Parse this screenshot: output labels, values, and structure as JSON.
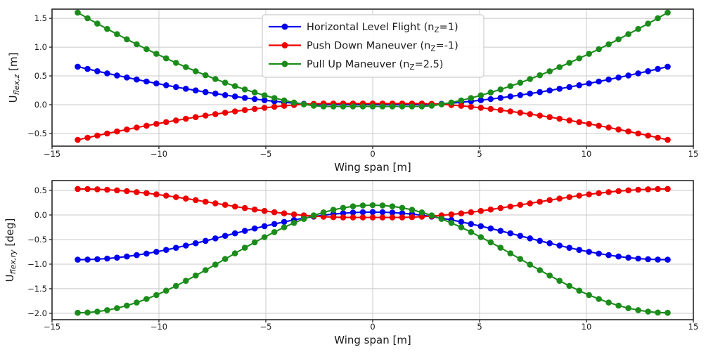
{
  "figure": {
    "background": "#ffffff",
    "grid_color": "#c8c8c8",
    "spine_color": "#262626",
    "text_color": "#1a1a1a",
    "legend_face_color": "#ffffff",
    "legend_edge_color": "#cccccc",
    "colors": {
      "horizontal-level-flight": "#0000ee",
      "push-down-maneuver": "#ee0000",
      "pull-up-maneuver": "#1b8c1b"
    },
    "legend": {
      "entries": [
        {
          "series": "horizontal-level-flight",
          "pre": "Horizontal Level Flight (n",
          "sub": "Z",
          "post": "=1)"
        },
        {
          "series": "push-down-maneuver",
          "pre": "Push Down Maneuver (n",
          "sub": "Z",
          "post": "=-1)"
        },
        {
          "series": "pull-up-maneuver",
          "pre": "Pull Up Maneuver (n",
          "sub": "Z",
          "post": "=2.5)"
        }
      ]
    }
  },
  "chart_data": [
    {
      "type": "line",
      "title": "",
      "xlabel": "Wing span [m]",
      "ylabel": {
        "pre": "U",
        "sub": "flex,z",
        "post": " [m]"
      },
      "xlim": [
        -15,
        15
      ],
      "ylim": [
        -0.72,
        1.66
      ],
      "grid": true,
      "legend_position": "upper center",
      "xticks": [
        {
          "v": -15,
          "label": "−15"
        },
        {
          "v": -10,
          "label": "−10"
        },
        {
          "v": -5,
          "label": "−5"
        },
        {
          "v": 0,
          "label": "0"
        },
        {
          "v": 5,
          "label": "5"
        },
        {
          "v": 10,
          "label": "10"
        },
        {
          "v": 15,
          "label": "15"
        }
      ],
      "yticks": [
        {
          "v": 1.5,
          "label": "1.5"
        },
        {
          "v": 1.0,
          "label": "1.0"
        },
        {
          "v": 0.5,
          "label": "0.5"
        },
        {
          "v": 0.0,
          "label": "0.0"
        },
        {
          "v": -0.5,
          "label": "−0.5"
        }
      ],
      "x": [
        -13.8,
        -13.34,
        -12.88,
        -12.42,
        -11.96,
        -11.5,
        -11.04,
        -10.58,
        -10.12,
        -9.66,
        -9.2,
        -8.74,
        -8.28,
        -7.82,
        -7.36,
        -6.9,
        -6.44,
        -5.98,
        -5.52,
        -5.06,
        -4.6,
        -4.14,
        -3.68,
        -3.22,
        -2.76,
        -2.3,
        -1.84,
        -1.38,
        -0.92,
        -0.46,
        0,
        0.46,
        0.92,
        1.38,
        1.84,
        2.3,
        2.76,
        3.22,
        3.68,
        4.14,
        4.6,
        5.06,
        5.52,
        5.98,
        6.44,
        6.9,
        7.36,
        7.82,
        8.28,
        8.74,
        9.2,
        9.66,
        10.12,
        10.58,
        11.04,
        11.5,
        11.96,
        12.42,
        12.88,
        13.34,
        13.8
      ],
      "series": [
        {
          "id": "horizontal-level-flight",
          "name": "Horizontal Level Flight (nZ=1)",
          "values": [
            0.66,
            0.621,
            0.582,
            0.545,
            0.508,
            0.472,
            0.437,
            0.403,
            0.37,
            0.338,
            0.307,
            0.277,
            0.248,
            0.219,
            0.193,
            0.167,
            0.143,
            0.119,
            0.098,
            0.078,
            0.059,
            0.042,
            0.027,
            0.015,
            0.005,
            0,
            0,
            0,
            0,
            0,
            0,
            0,
            0,
            0,
            0,
            0,
            0.005,
            0.015,
            0.027,
            0.042,
            0.059,
            0.078,
            0.098,
            0.119,
            0.143,
            0.167,
            0.193,
            0.219,
            0.248,
            0.277,
            0.307,
            0.338,
            0.37,
            0.403,
            0.437,
            0.472,
            0.508,
            0.545,
            0.582,
            0.621,
            0.66
          ]
        },
        {
          "id": "push-down-maneuver",
          "name": "Push Down Maneuver (nZ=-1)",
          "values": [
            -0.61,
            -0.573,
            -0.536,
            -0.5,
            -0.465,
            -0.431,
            -0.397,
            -0.365,
            -0.333,
            -0.303,
            -0.273,
            -0.244,
            -0.216,
            -0.189,
            -0.164,
            -0.139,
            -0.116,
            -0.094,
            -0.073,
            -0.054,
            -0.036,
            -0.02,
            -0.006,
            0.006,
            0.015,
            0.02,
            0.02,
            0.02,
            0.02,
            0.02,
            0.02,
            0.02,
            0.02,
            0.02,
            0.02,
            0.02,
            0.015,
            0.006,
            -0.006,
            -0.02,
            -0.036,
            -0.054,
            -0.073,
            -0.094,
            -0.116,
            -0.139,
            -0.164,
            -0.189,
            -0.216,
            -0.244,
            -0.273,
            -0.303,
            -0.333,
            -0.365,
            -0.397,
            -0.431,
            -0.465,
            -0.5,
            -0.536,
            -0.573,
            -0.61
          ]
        },
        {
          "id": "pull-up-maneuver",
          "name": "Pull Up Maneuver (nZ=2.5)",
          "values": [
            1.6,
            1.503,
            1.408,
            1.316,
            1.225,
            1.136,
            1.05,
            0.966,
            0.884,
            0.805,
            0.728,
            0.653,
            0.581,
            0.512,
            0.446,
            0.382,
            0.322,
            0.265,
            0.212,
            0.162,
            0.116,
            0.074,
            0.038,
            0.007,
            -0.017,
            -0.03,
            -0.03,
            -0.03,
            -0.03,
            -0.03,
            -0.03,
            -0.03,
            -0.03,
            -0.03,
            -0.03,
            -0.03,
            -0.017,
            0.007,
            0.038,
            0.074,
            0.116,
            0.162,
            0.212,
            0.265,
            0.322,
            0.382,
            0.446,
            0.512,
            0.581,
            0.653,
            0.728,
            0.805,
            0.884,
            0.966,
            1.05,
            1.136,
            1.225,
            1.316,
            1.408,
            1.503,
            1.6
          ]
        }
      ]
    },
    {
      "type": "line",
      "title": "",
      "xlabel": "Wing span [m]",
      "ylabel": {
        "pre": "U",
        "sub": "flex,ry",
        "post": " [deg]"
      },
      "xlim": [
        -15,
        15
      ],
      "ylim": [
        -2.13,
        0.7
      ],
      "grid": true,
      "legend_position": "none",
      "xticks": [
        {
          "v": -15,
          "label": "−15"
        },
        {
          "v": -10,
          "label": "−10"
        },
        {
          "v": -5,
          "label": "−5"
        },
        {
          "v": 0,
          "label": "0"
        },
        {
          "v": 5,
          "label": "5"
        },
        {
          "v": 10,
          "label": "10"
        },
        {
          "v": 15,
          "label": "15"
        }
      ],
      "yticks": [
        {
          "v": 0.5,
          "label": "0.5"
        },
        {
          "v": 0.0,
          "label": "0.0"
        },
        {
          "v": -0.5,
          "label": "−0.5"
        },
        {
          "v": -1.0,
          "label": "−1.0"
        },
        {
          "v": -1.5,
          "label": "−1.5"
        },
        {
          "v": -2.0,
          "label": "−2.0"
        }
      ],
      "x": [
        -13.8,
        -13.34,
        -12.88,
        -12.42,
        -11.96,
        -11.5,
        -11.04,
        -10.58,
        -10.12,
        -9.66,
        -9.2,
        -8.74,
        -8.28,
        -7.82,
        -7.36,
        -6.9,
        -6.44,
        -5.98,
        -5.52,
        -5.06,
        -4.6,
        -4.14,
        -3.68,
        -3.22,
        -2.76,
        -2.3,
        -1.84,
        -1.38,
        -0.92,
        -0.46,
        0,
        0.46,
        0.92,
        1.38,
        1.84,
        2.3,
        2.76,
        3.22,
        3.68,
        4.14,
        4.6,
        5.06,
        5.52,
        5.98,
        6.44,
        6.9,
        7.36,
        7.82,
        8.28,
        8.74,
        9.2,
        9.66,
        10.12,
        10.58,
        11.04,
        11.5,
        11.96,
        12.42,
        12.88,
        13.34,
        13.8
      ],
      "series": [
        {
          "id": "horizontal-level-flight",
          "name": "Horizontal Level Flight (nZ=1)",
          "values": [
            -0.91,
            -0.907,
            -0.899,
            -0.886,
            -0.868,
            -0.845,
            -0.817,
            -0.785,
            -0.75,
            -0.71,
            -0.668,
            -0.622,
            -0.575,
            -0.526,
            -0.476,
            -0.425,
            -0.374,
            -0.324,
            -0.275,
            -0.228,
            -0.183,
            -0.14,
            -0.1,
            -0.065,
            -0.033,
            -0.005,
            0.018,
            0.036,
            0.049,
            0.057,
            0.06,
            0.057,
            0.049,
            0.036,
            0.018,
            -0.005,
            -0.033,
            -0.065,
            -0.1,
            -0.14,
            -0.183,
            -0.228,
            -0.275,
            -0.324,
            -0.374,
            -0.425,
            -0.476,
            -0.526,
            -0.575,
            -0.622,
            -0.668,
            -0.71,
            -0.75,
            -0.785,
            -0.817,
            -0.845,
            -0.868,
            -0.886,
            -0.899,
            -0.907,
            -0.91
          ]
        },
        {
          "id": "push-down-maneuver",
          "name": "Push Down Maneuver (nZ=-1)",
          "values": [
            0.53,
            0.528,
            0.523,
            0.514,
            0.501,
            0.485,
            0.466,
            0.444,
            0.42,
            0.393,
            0.364,
            0.334,
            0.302,
            0.27,
            0.237,
            0.205,
            0.172,
            0.141,
            0.111,
            0.082,
            0.056,
            0.032,
            0.011,
            -0.008,
            -0.023,
            -0.035,
            -0.044,
            -0.049,
            -0.05,
            -0.05,
            -0.05,
            -0.05,
            -0.05,
            -0.049,
            -0.044,
            -0.035,
            -0.023,
            -0.008,
            0.011,
            0.032,
            0.056,
            0.082,
            0.111,
            0.141,
            0.172,
            0.205,
            0.237,
            0.27,
            0.302,
            0.334,
            0.364,
            0.393,
            0.42,
            0.444,
            0.466,
            0.485,
            0.501,
            0.514,
            0.523,
            0.528,
            0.53
          ]
        },
        {
          "id": "pull-up-maneuver",
          "name": "Pull Up Maneuver (nZ=2.5)",
          "values": [
            -1.99,
            -1.984,
            -1.966,
            -1.936,
            -1.895,
            -1.843,
            -1.781,
            -1.709,
            -1.628,
            -1.539,
            -1.443,
            -1.34,
            -1.233,
            -1.123,
            -1.009,
            -0.895,
            -0.781,
            -0.667,
            -0.557,
            -0.45,
            -0.348,
            -0.251,
            -0.162,
            -0.081,
            -0.009,
            0.053,
            0.105,
            0.146,
            0.176,
            0.194,
            0.2,
            0.194,
            0.176,
            0.146,
            0.105,
            0.053,
            -0.009,
            -0.081,
            -0.162,
            -0.251,
            -0.348,
            -0.45,
            -0.557,
            -0.667,
            -0.781,
            -0.895,
            -1.009,
            -1.123,
            -1.233,
            -1.34,
            -1.443,
            -1.539,
            -1.628,
            -1.709,
            -1.781,
            -1.843,
            -1.895,
            -1.936,
            -1.966,
            -1.984,
            -1.99
          ]
        }
      ]
    }
  ]
}
